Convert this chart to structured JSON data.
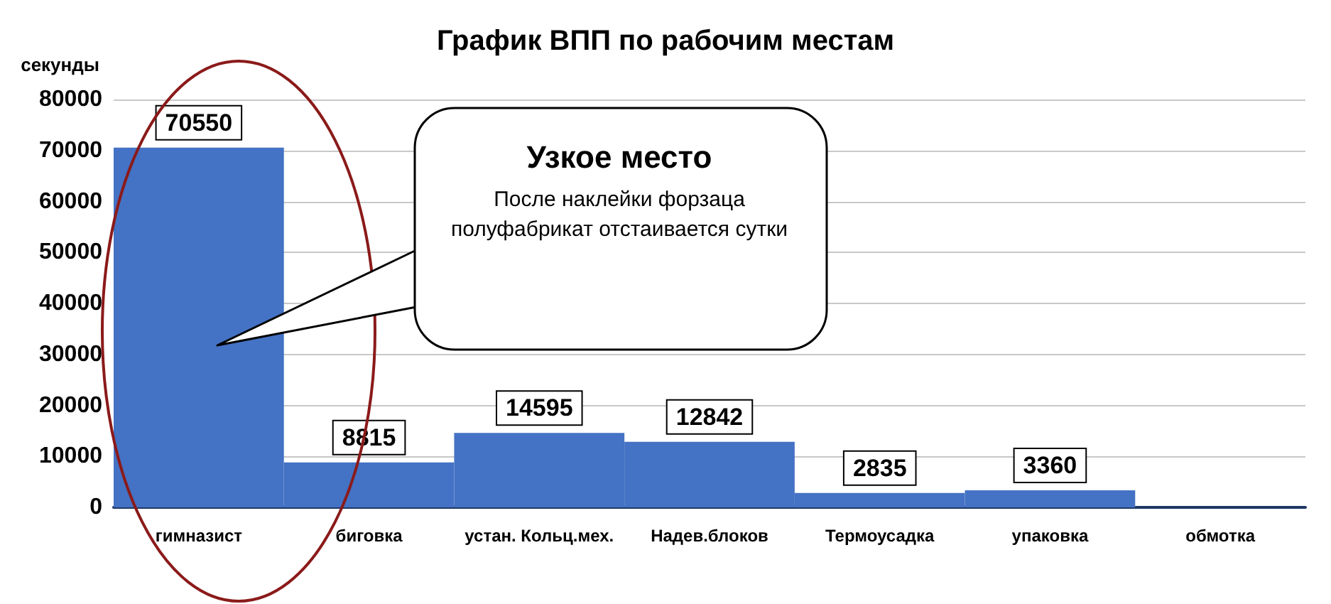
{
  "chart_data": {
    "type": "bar",
    "title": "График ВПП по рабочим местам",
    "ylabel": "секунды",
    "categories": [
      "гимназист",
      "биговка",
      "устан. Кольц.мех.",
      "Надев.блоков",
      "Термоусадка",
      "упаковка",
      "обмотка"
    ],
    "values": [
      70550,
      8815,
      14595,
      12842,
      2835,
      3360,
      0
    ],
    "value_labels": [
      "70550",
      "8815",
      "14595",
      "12842",
      "2835",
      "3360",
      null
    ],
    "color": "#4472c4",
    "ylim": [
      0,
      80000
    ],
    "yticks": [
      0,
      10000,
      20000,
      30000,
      40000,
      50000,
      60000,
      70000,
      80000
    ],
    "grid": "y",
    "annotations": [
      "Узкое место",
      "После наклейки форзаца полуфабрикат отстаивается сутки"
    ]
  }
}
